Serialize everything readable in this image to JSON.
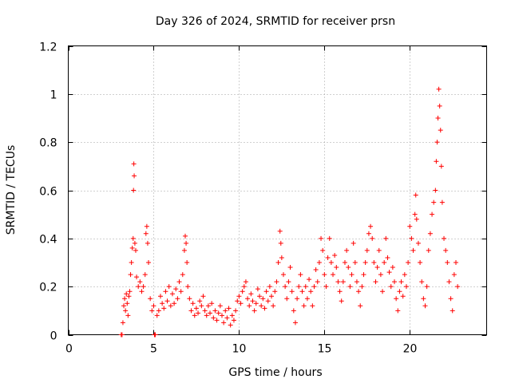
{
  "chart_data": {
    "type": "scatter",
    "title": "Day 326 of 2024, SRMTID for receiver prsn",
    "xlabel": "GPS time / hours",
    "ylabel": "SRMTID / TECUs",
    "xlim": [
      0,
      24.5
    ],
    "ylim": [
      0,
      1.2
    ],
    "x_ticks": [
      0,
      5,
      10,
      15,
      20
    ],
    "x_tick_labels": [
      "0",
      "5",
      "10",
      "15",
      "20"
    ],
    "y_ticks": [
      0,
      0.2,
      0.4,
      0.6,
      0.8,
      1.0,
      1.2
    ],
    "y_tick_labels": [
      "0",
      "0.2",
      "0.4",
      "0.6",
      "0.8",
      "1",
      "1.2"
    ],
    "grid": true,
    "marker": "plus",
    "color": "#ff0000",
    "series": [
      {
        "name": "SRMTID",
        "points": [
          [
            3.1,
            0.0
          ],
          [
            3.15,
            0.0
          ],
          [
            5.05,
            0.0
          ],
          [
            5.1,
            0.0
          ],
          [
            3.2,
            0.05
          ],
          [
            3.25,
            0.12
          ],
          [
            3.3,
            0.15
          ],
          [
            3.35,
            0.1
          ],
          [
            3.4,
            0.17
          ],
          [
            3.45,
            0.13
          ],
          [
            3.5,
            0.08
          ],
          [
            3.55,
            0.16
          ],
          [
            3.6,
            0.18
          ],
          [
            3.65,
            0.25
          ],
          [
            3.7,
            0.3
          ],
          [
            3.75,
            0.36
          ],
          [
            3.8,
            0.4
          ],
          [
            3.82,
            0.6
          ],
          [
            3.84,
            0.71
          ],
          [
            3.86,
            0.66
          ],
          [
            3.9,
            0.38
          ],
          [
            3.95,
            0.35
          ],
          [
            4.0,
            0.24
          ],
          [
            4.1,
            0.2
          ],
          [
            4.2,
            0.22
          ],
          [
            4.3,
            0.18
          ],
          [
            4.4,
            0.2
          ],
          [
            4.5,
            0.25
          ],
          [
            4.55,
            0.42
          ],
          [
            4.6,
            0.45
          ],
          [
            4.65,
            0.38
          ],
          [
            4.7,
            0.3
          ],
          [
            4.8,
            0.15
          ],
          [
            4.9,
            0.1
          ],
          [
            5.0,
            0.12
          ],
          [
            5.2,
            0.08
          ],
          [
            5.3,
            0.1
          ],
          [
            5.4,
            0.16
          ],
          [
            5.5,
            0.13
          ],
          [
            5.6,
            0.11
          ],
          [
            5.7,
            0.18
          ],
          [
            5.8,
            0.14
          ],
          [
            5.9,
            0.2
          ],
          [
            6.0,
            0.12
          ],
          [
            6.1,
            0.17
          ],
          [
            6.2,
            0.13
          ],
          [
            6.3,
            0.19
          ],
          [
            6.4,
            0.15
          ],
          [
            6.5,
            0.22
          ],
          [
            6.6,
            0.18
          ],
          [
            6.7,
            0.25
          ],
          [
            6.8,
            0.35
          ],
          [
            6.85,
            0.41
          ],
          [
            6.9,
            0.38
          ],
          [
            6.95,
            0.3
          ],
          [
            7.0,
            0.2
          ],
          [
            7.1,
            0.15
          ],
          [
            7.2,
            0.1
          ],
          [
            7.3,
            0.13
          ],
          [
            7.4,
            0.08
          ],
          [
            7.5,
            0.11
          ],
          [
            7.6,
            0.09
          ],
          [
            7.7,
            0.14
          ],
          [
            7.8,
            0.12
          ],
          [
            7.9,
            0.16
          ],
          [
            8.0,
            0.1
          ],
          [
            8.1,
            0.08
          ],
          [
            8.2,
            0.12
          ],
          [
            8.3,
            0.09
          ],
          [
            8.4,
            0.13
          ],
          [
            8.5,
            0.07
          ],
          [
            8.6,
            0.1
          ],
          [
            8.7,
            0.06
          ],
          [
            8.8,
            0.09
          ],
          [
            8.9,
            0.12
          ],
          [
            9.0,
            0.08
          ],
          [
            9.1,
            0.05
          ],
          [
            9.2,
            0.1
          ],
          [
            9.3,
            0.07
          ],
          [
            9.4,
            0.11
          ],
          [
            9.5,
            0.04
          ],
          [
            9.6,
            0.08
          ],
          [
            9.7,
            0.06
          ],
          [
            9.8,
            0.1
          ],
          [
            9.9,
            0.14
          ],
          [
            10.0,
            0.16
          ],
          [
            10.1,
            0.13
          ],
          [
            10.2,
            0.18
          ],
          [
            10.3,
            0.2
          ],
          [
            10.4,
            0.22
          ],
          [
            10.5,
            0.15
          ],
          [
            10.6,
            0.12
          ],
          [
            10.7,
            0.17
          ],
          [
            10.8,
            0.14
          ],
          [
            10.9,
            0.1
          ],
          [
            11.0,
            0.13
          ],
          [
            11.1,
            0.19
          ],
          [
            11.2,
            0.16
          ],
          [
            11.3,
            0.12
          ],
          [
            11.4,
            0.15
          ],
          [
            11.5,
            0.11
          ],
          [
            11.6,
            0.18
          ],
          [
            11.7,
            0.14
          ],
          [
            11.8,
            0.2
          ],
          [
            11.9,
            0.16
          ],
          [
            12.0,
            0.12
          ],
          [
            12.1,
            0.18
          ],
          [
            12.2,
            0.22
          ],
          [
            12.3,
            0.3
          ],
          [
            12.4,
            0.43
          ],
          [
            12.45,
            0.38
          ],
          [
            12.5,
            0.32
          ],
          [
            12.6,
            0.25
          ],
          [
            12.7,
            0.2
          ],
          [
            12.8,
            0.15
          ],
          [
            12.9,
            0.22
          ],
          [
            13.0,
            0.28
          ],
          [
            13.1,
            0.18
          ],
          [
            13.2,
            0.1
          ],
          [
            13.3,
            0.05
          ],
          [
            13.4,
            0.15
          ],
          [
            13.5,
            0.2
          ],
          [
            13.6,
            0.25
          ],
          [
            13.7,
            0.18
          ],
          [
            13.8,
            0.12
          ],
          [
            13.9,
            0.2
          ],
          [
            14.0,
            0.15
          ],
          [
            14.1,
            0.23
          ],
          [
            14.2,
            0.18
          ],
          [
            14.3,
            0.12
          ],
          [
            14.4,
            0.2
          ],
          [
            14.5,
            0.27
          ],
          [
            14.6,
            0.22
          ],
          [
            14.7,
            0.3
          ],
          [
            14.8,
            0.4
          ],
          [
            14.9,
            0.35
          ],
          [
            15.0,
            0.25
          ],
          [
            15.1,
            0.2
          ],
          [
            15.2,
            0.32
          ],
          [
            15.3,
            0.4
          ],
          [
            15.4,
            0.3
          ],
          [
            15.5,
            0.25
          ],
          [
            15.6,
            0.33
          ],
          [
            15.7,
            0.28
          ],
          [
            15.8,
            0.22
          ],
          [
            15.9,
            0.18
          ],
          [
            16.0,
            0.14
          ],
          [
            16.1,
            0.22
          ],
          [
            16.2,
            0.3
          ],
          [
            16.3,
            0.35
          ],
          [
            16.4,
            0.28
          ],
          [
            16.5,
            0.2
          ],
          [
            16.6,
            0.25
          ],
          [
            16.7,
            0.38
          ],
          [
            16.8,
            0.3
          ],
          [
            16.9,
            0.22
          ],
          [
            17.0,
            0.18
          ],
          [
            17.1,
            0.12
          ],
          [
            17.2,
            0.2
          ],
          [
            17.3,
            0.25
          ],
          [
            17.4,
            0.3
          ],
          [
            17.5,
            0.35
          ],
          [
            17.6,
            0.42
          ],
          [
            17.7,
            0.45
          ],
          [
            17.8,
            0.4
          ],
          [
            17.9,
            0.3
          ],
          [
            18.0,
            0.22
          ],
          [
            18.1,
            0.28
          ],
          [
            18.2,
            0.35
          ],
          [
            18.3,
            0.25
          ],
          [
            18.4,
            0.18
          ],
          [
            18.5,
            0.3
          ],
          [
            18.6,
            0.4
          ],
          [
            18.7,
            0.32
          ],
          [
            18.8,
            0.26
          ],
          [
            18.9,
            0.2
          ],
          [
            19.0,
            0.28
          ],
          [
            19.1,
            0.22
          ],
          [
            19.2,
            0.15
          ],
          [
            19.3,
            0.1
          ],
          [
            19.4,
            0.18
          ],
          [
            19.5,
            0.22
          ],
          [
            19.6,
            0.16
          ],
          [
            19.7,
            0.25
          ],
          [
            19.8,
            0.2
          ],
          [
            19.9,
            0.3
          ],
          [
            20.0,
            0.45
          ],
          [
            20.1,
            0.4
          ],
          [
            20.2,
            0.35
          ],
          [
            20.3,
            0.5
          ],
          [
            20.35,
            0.58
          ],
          [
            20.4,
            0.48
          ],
          [
            20.5,
            0.38
          ],
          [
            20.6,
            0.3
          ],
          [
            20.7,
            0.22
          ],
          [
            20.8,
            0.15
          ],
          [
            20.9,
            0.12
          ],
          [
            21.0,
            0.2
          ],
          [
            21.1,
            0.35
          ],
          [
            21.2,
            0.42
          ],
          [
            21.3,
            0.5
          ],
          [
            21.4,
            0.55
          ],
          [
            21.5,
            0.6
          ],
          [
            21.55,
            0.72
          ],
          [
            21.6,
            0.8
          ],
          [
            21.65,
            0.9
          ],
          [
            21.7,
            1.02
          ],
          [
            21.75,
            0.95
          ],
          [
            21.8,
            0.85
          ],
          [
            21.85,
            0.7
          ],
          [
            21.9,
            0.55
          ],
          [
            22.0,
            0.4
          ],
          [
            22.1,
            0.35
          ],
          [
            22.2,
            0.3
          ],
          [
            22.3,
            0.22
          ],
          [
            22.4,
            0.15
          ],
          [
            22.5,
            0.1
          ],
          [
            22.6,
            0.25
          ],
          [
            22.7,
            0.3
          ],
          [
            22.8,
            0.2
          ]
        ]
      }
    ]
  }
}
